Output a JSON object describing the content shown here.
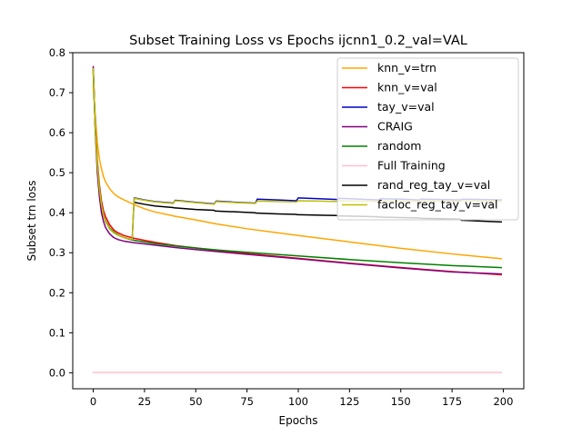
{
  "chart_data": {
    "type": "line",
    "title": "Subset Training Loss vs Epochs ijcnn1_0.2_val=VAL",
    "xlabel": "Epochs",
    "ylabel": "Subset trn loss",
    "xlim": [
      -10,
      210
    ],
    "ylim": [
      -0.04,
      0.8
    ],
    "xticks": [
      0,
      25,
      50,
      75,
      100,
      125,
      150,
      175,
      200
    ],
    "yticks": [
      0.0,
      0.1,
      0.2,
      0.3,
      0.4,
      0.5,
      0.6,
      0.7,
      0.8
    ],
    "xtick_labels": [
      "0",
      "25",
      "50",
      "75",
      "100",
      "125",
      "150",
      "175",
      "200"
    ],
    "ytick_labels": [
      "0.0",
      "0.1",
      "0.2",
      "0.3",
      "0.4",
      "0.5",
      "0.6",
      "0.7",
      "0.8"
    ],
    "grid": false,
    "legend_position": "top-right",
    "series": [
      {
        "name": "knn_v=trn",
        "color": "#ffa500",
        "x": [
          0,
          1,
          2,
          3,
          4,
          5,
          6,
          8,
          10,
          12,
          15,
          20,
          25,
          30,
          40,
          50,
          60,
          75,
          100,
          125,
          150,
          175,
          199
        ],
        "y": [
          0.715,
          0.64,
          0.575,
          0.535,
          0.51,
          0.49,
          0.477,
          0.46,
          0.448,
          0.44,
          0.432,
          0.42,
          0.41,
          0.402,
          0.391,
          0.382,
          0.372,
          0.36,
          0.343,
          0.327,
          0.311,
          0.297,
          0.285
        ]
      },
      {
        "name": "knn_v=val",
        "color": "#ff0000",
        "x": [
          0,
          1,
          2,
          3,
          4,
          5,
          6,
          8,
          10,
          12,
          15,
          20,
          25,
          30,
          40,
          50,
          60,
          75,
          100,
          125,
          150,
          175,
          199
        ],
        "y": [
          0.755,
          0.62,
          0.53,
          0.47,
          0.43,
          0.405,
          0.39,
          0.37,
          0.357,
          0.35,
          0.343,
          0.336,
          0.331,
          0.326,
          0.318,
          0.312,
          0.306,
          0.298,
          0.286,
          0.274,
          0.263,
          0.253,
          0.245
        ]
      },
      {
        "name": "tay_v=val",
        "color": "#0000cd",
        "x": [
          0,
          1,
          2,
          3,
          4,
          5,
          6,
          8,
          10,
          12,
          15,
          19,
          19.5,
          20,
          25,
          30,
          39,
          39.5,
          40,
          50,
          59,
          59.5,
          60,
          70,
          79,
          79.5,
          80,
          90,
          99,
          99.5,
          100,
          110,
          119,
          119.5,
          120,
          130,
          139,
          139.5,
          140,
          150,
          159,
          159.5,
          160,
          170,
          179,
          179.5,
          180,
          190,
          199
        ],
        "y": [
          0.76,
          0.61,
          0.52,
          0.46,
          0.42,
          0.395,
          0.378,
          0.36,
          0.35,
          0.344,
          0.338,
          0.332,
          0.39,
          0.437,
          0.432,
          0.428,
          0.424,
          0.428,
          0.431,
          0.426,
          0.422,
          0.426,
          0.429,
          0.426,
          0.424,
          0.428,
          0.434,
          0.432,
          0.43,
          0.433,
          0.437,
          0.435,
          0.433,
          0.434,
          0.436,
          0.434,
          0.432,
          0.433,
          0.435,
          0.434,
          0.432,
          0.433,
          0.434,
          0.433,
          0.432,
          0.433,
          0.434,
          0.433,
          0.432
        ]
      },
      {
        "name": "CRAIG",
        "color": "#800080",
        "x": [
          0,
          1,
          2,
          3,
          4,
          5,
          6,
          8,
          10,
          12,
          15,
          20,
          25,
          30,
          40,
          50,
          60,
          75,
          100,
          125,
          150,
          175,
          199
        ],
        "y": [
          0.765,
          0.6,
          0.5,
          0.44,
          0.4,
          0.378,
          0.363,
          0.347,
          0.338,
          0.333,
          0.329,
          0.325,
          0.322,
          0.319,
          0.313,
          0.308,
          0.303,
          0.296,
          0.285,
          0.273,
          0.262,
          0.252,
          0.247
        ]
      },
      {
        "name": "random",
        "color": "#008000",
        "x": [
          0,
          1,
          2,
          3,
          4,
          5,
          6,
          8,
          10,
          12,
          15,
          20,
          25,
          30,
          40,
          50,
          60,
          75,
          100,
          125,
          150,
          175,
          199
        ],
        "y": [
          0.75,
          0.61,
          0.52,
          0.46,
          0.42,
          0.395,
          0.38,
          0.362,
          0.352,
          0.345,
          0.338,
          0.331,
          0.327,
          0.323,
          0.317,
          0.312,
          0.307,
          0.301,
          0.292,
          0.283,
          0.275,
          0.268,
          0.263
        ]
      },
      {
        "name": "Full Training",
        "color": "#ffc0cb",
        "x": [
          0,
          199
        ],
        "y": [
          0.001,
          0.001
        ]
      },
      {
        "name": "rand_reg_tay_v=val",
        "color": "#000000",
        "x": [
          20,
          25,
          30,
          39,
          39.5,
          40,
          50,
          59,
          59.5,
          60,
          70,
          79,
          79.5,
          80,
          90,
          99,
          99.5,
          100,
          110,
          119,
          119.5,
          120,
          130,
          139,
          139.5,
          140,
          150,
          159,
          159.5,
          160,
          170,
          179,
          179.5,
          180,
          190,
          199
        ],
        "y": [
          0.426,
          0.421,
          0.417,
          0.413,
          0.412,
          0.412,
          0.408,
          0.406,
          0.404,
          0.404,
          0.402,
          0.4,
          0.399,
          0.399,
          0.397,
          0.396,
          0.395,
          0.395,
          0.394,
          0.393,
          0.392,
          0.392,
          0.391,
          0.39,
          0.389,
          0.389,
          0.388,
          0.387,
          0.386,
          0.386,
          0.385,
          0.384,
          0.381,
          0.381,
          0.379,
          0.377
        ]
      },
      {
        "name": "facloc_reg_tay_v=val",
        "color": "#bfbf00",
        "x": [
          0,
          1,
          2,
          3,
          4,
          5,
          6,
          8,
          10,
          12,
          15,
          19,
          19.5,
          20,
          25,
          30,
          39,
          39.5,
          40,
          50,
          59,
          59.5,
          60,
          70,
          79,
          79.5,
          80,
          90,
          99,
          99.5,
          100,
          110,
          119,
          119.5,
          120,
          130,
          139,
          139.5,
          140,
          150,
          159,
          159.5,
          160,
          170,
          179,
          179.5,
          180,
          190,
          199
        ],
        "y": [
          0.76,
          0.61,
          0.52,
          0.46,
          0.42,
          0.395,
          0.378,
          0.36,
          0.35,
          0.344,
          0.338,
          0.333,
          0.39,
          0.436,
          0.431,
          0.427,
          0.423,
          0.427,
          0.43,
          0.425,
          0.421,
          0.425,
          0.428,
          0.425,
          0.423,
          0.426,
          0.429,
          0.428,
          0.427,
          0.428,
          0.43,
          0.429,
          0.428,
          0.429,
          0.43,
          0.429,
          0.428,
          0.429,
          0.43,
          0.429,
          0.428,
          0.429,
          0.43,
          0.429,
          0.428,
          0.429,
          0.43,
          0.429,
          0.428
        ]
      }
    ]
  }
}
